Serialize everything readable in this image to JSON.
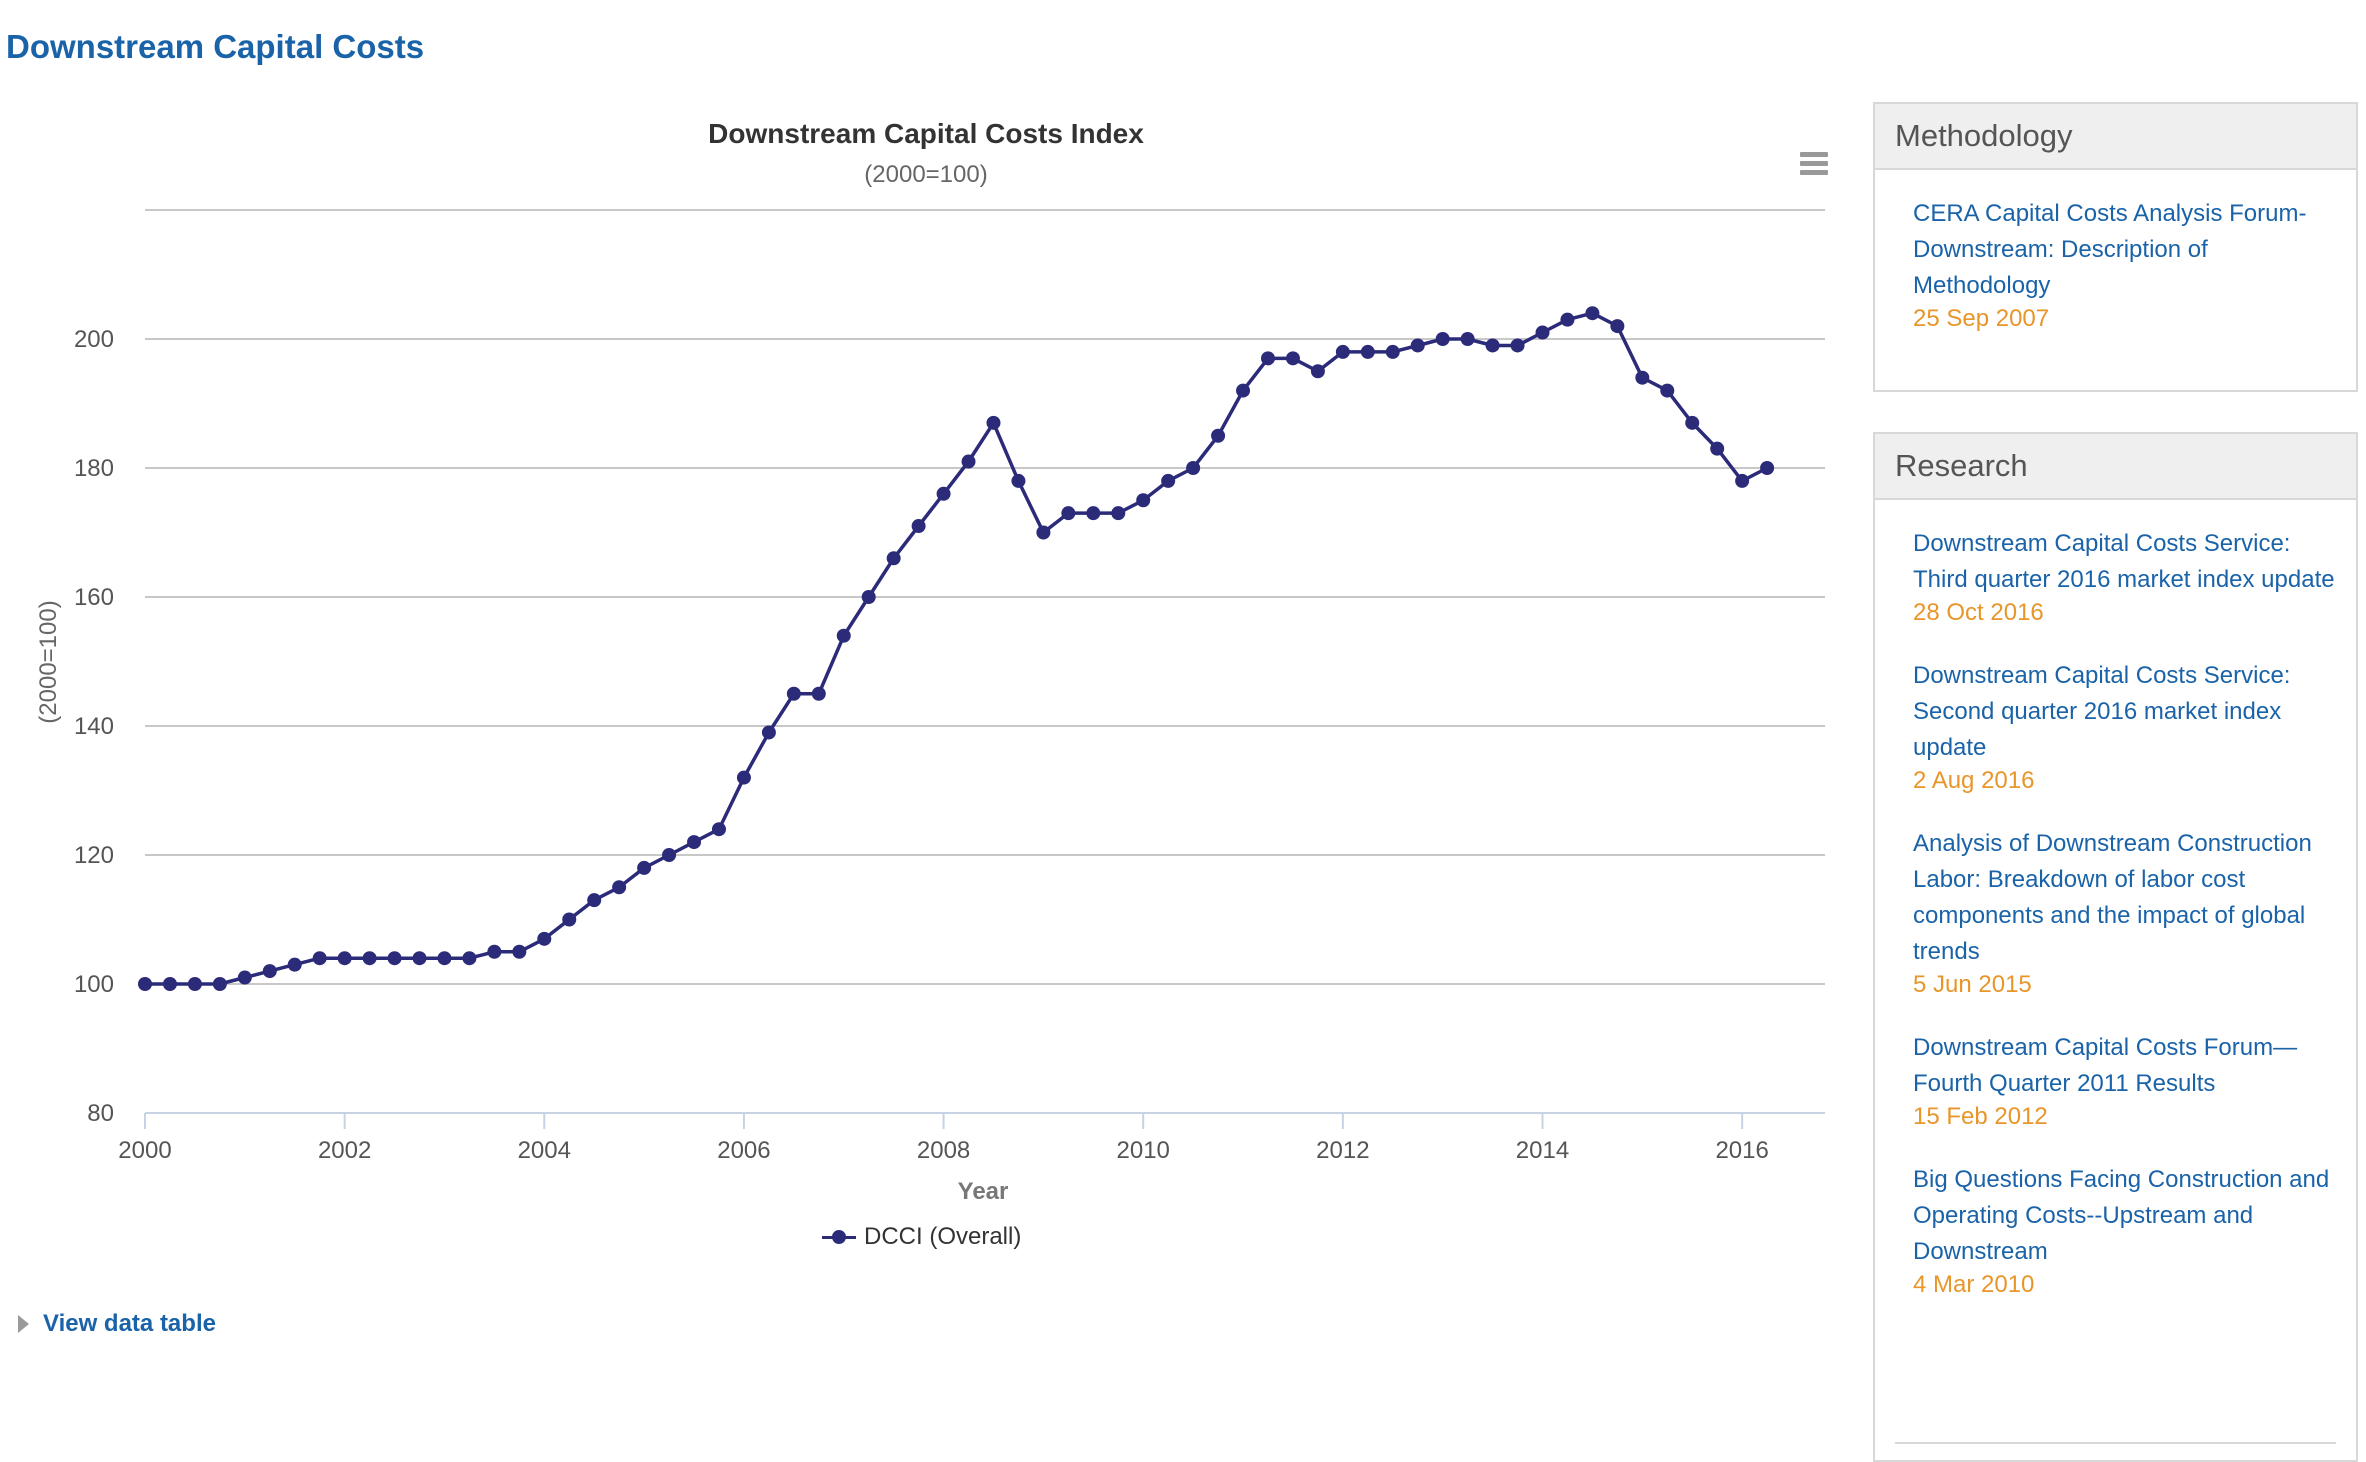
{
  "page": {
    "title": "Downstream Capital Costs",
    "view_table_label": "View data table"
  },
  "chart_data": {
    "type": "line",
    "title": "Downstream Capital Costs Index",
    "subtitle": "(2000=100)",
    "xlabel": "Year",
    "ylabel": "(2000=100)",
    "xlim": [
      2000.0,
      2016.83
    ],
    "ylim": [
      80,
      220
    ],
    "x_ticks": [
      2000,
      2002,
      2004,
      2006,
      2008,
      2010,
      2012,
      2014,
      2016
    ],
    "y_ticks": [
      80,
      100,
      120,
      140,
      160,
      180,
      200
    ],
    "grid": true,
    "legend_position": "bottom-center",
    "color": "#2b2b7a",
    "series": [
      {
        "name": "DCCI (Overall)",
        "x": [
          2000.0,
          2000.25,
          2000.5,
          2000.75,
          2001.0,
          2001.25,
          2001.5,
          2001.75,
          2002.0,
          2002.25,
          2002.5,
          2002.75,
          2003.0,
          2003.25,
          2003.5,
          2003.75,
          2004.0,
          2004.25,
          2004.5,
          2004.75,
          2005.0,
          2005.25,
          2005.5,
          2005.75,
          2006.0,
          2006.25,
          2006.5,
          2006.75,
          2007.0,
          2007.25,
          2007.5,
          2007.75,
          2008.0,
          2008.25,
          2008.5,
          2008.75,
          2009.0,
          2009.25,
          2009.5,
          2009.75,
          2010.0,
          2010.25,
          2010.5,
          2010.75,
          2011.0,
          2011.25,
          2011.5,
          2011.75,
          2012.0,
          2012.25,
          2012.5,
          2012.75,
          2013.0,
          2013.25,
          2013.5,
          2013.75,
          2014.0,
          2014.25,
          2014.5,
          2014.75,
          2015.0,
          2015.25,
          2015.5,
          2015.75,
          2016.0,
          2016.25
        ],
        "values": [
          100,
          100,
          100,
          100,
          101,
          102,
          103,
          104,
          104,
          104,
          104,
          104,
          104,
          104,
          105,
          105,
          107,
          110,
          113,
          115,
          118,
          120,
          122,
          124,
          132,
          139,
          145,
          145,
          154,
          160,
          166,
          171,
          176,
          181,
          187,
          178,
          170,
          173,
          173,
          173,
          175,
          178,
          180,
          185,
          192,
          197,
          197,
          195,
          198,
          198,
          198,
          199,
          200,
          200,
          199,
          199,
          201,
          203,
          204,
          202,
          194,
          192,
          187,
          183,
          178,
          180
        ]
      }
    ]
  },
  "sidebar": {
    "methodology": {
      "heading": "Methodology",
      "items": [
        {
          "title": "CERA Capital Costs Analysis Forum-Downstream: Description of Methodology",
          "date": "25 Sep 2007"
        }
      ]
    },
    "research": {
      "heading": "Research",
      "items": [
        {
          "title": "Downstream Capital Costs Service: Third quarter 2016 market index update",
          "date": "28 Oct 2016"
        },
        {
          "title": "Downstream Capital Costs Service: Second quarter 2016 market index update",
          "date": "2 Aug 2016"
        },
        {
          "title": "Analysis of Downstream Construction Labor: Breakdown of labor cost components and the impact of global trends",
          "date": "5 Jun 2015"
        },
        {
          "title": "Downstream Capital Costs Forum—Fourth Quarter 2011 Results",
          "date": "15 Feb 2012"
        },
        {
          "title": "Big Questions Facing Construction and Operating Costs--Upstream and Downstream",
          "date": "4 Mar 2010"
        }
      ]
    }
  }
}
